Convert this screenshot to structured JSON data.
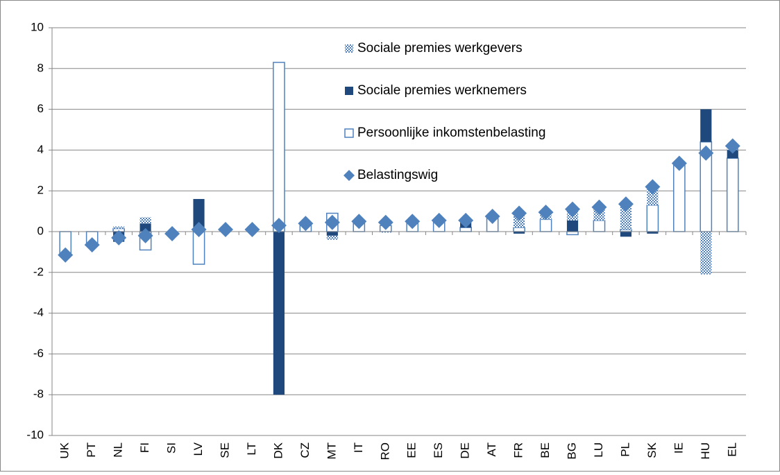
{
  "chart_data": {
    "type": "bar",
    "stacked": true,
    "categories": [
      "UK",
      "PT",
      "NL",
      "FI",
      "SI",
      "LV",
      "SE",
      "LT",
      "DK",
      "CZ",
      "MT",
      "IT",
      "RO",
      "EE",
      "ES",
      "DE",
      "AT",
      "FR",
      "BE",
      "BG",
      "LU",
      "PL",
      "SK",
      "IE",
      "HU",
      "EL"
    ],
    "series": [
      {
        "name": "Sociale premies werkgevers",
        "color": "#4f81bd",
        "style": "pattern",
        "values": [
          0,
          0,
          0.1,
          0.3,
          0,
          0,
          0,
          0,
          0,
          0,
          -0.2,
          0,
          -0.05,
          0,
          0,
          0,
          0,
          0.6,
          0.3,
          0.5,
          0.6,
          1.3,
          0.9,
          0,
          -2.1,
          0.2
        ]
      },
      {
        "name": "Sociale premies werknemers",
        "color": "#1f497d",
        "style": "solid",
        "values": [
          0,
          0,
          -0.5,
          0.4,
          0,
          1.6,
          0,
          0,
          -8.0,
          0,
          -0.2,
          0,
          0,
          0,
          0,
          0.3,
          0,
          -0.1,
          0,
          0.55,
          0,
          -0.25,
          -0.1,
          0,
          1.6,
          0.4
        ]
      },
      {
        "name": "Persoonlijke inkomstenbelasting",
        "color": "#4f81bd",
        "style": "outline",
        "values": [
          -1.1,
          -0.6,
          0.15,
          -0.9,
          0,
          -1.6,
          0,
          0,
          8.3,
          0.4,
          0.9,
          0.5,
          0.3,
          0.5,
          0.5,
          0.2,
          0.75,
          0.2,
          0.6,
          -0.15,
          0.55,
          0.1,
          1.3,
          3.3,
          4.4,
          3.6
        ]
      },
      {
        "name": "Belastingswig",
        "color": "#4f81bd",
        "style": "diamond",
        "values": [
          -1.15,
          -0.65,
          -0.3,
          -0.2,
          -0.1,
          0.1,
          0.1,
          0.1,
          0.3,
          0.4,
          0.45,
          0.5,
          0.45,
          0.5,
          0.55,
          0.55,
          0.75,
          0.9,
          0.95,
          1.1,
          1.2,
          1.35,
          2.2,
          3.35,
          3.85,
          4.2
        ]
      }
    ],
    "ylim": [
      -10,
      10
    ],
    "yticks": [
      -10,
      -8,
      -6,
      -4,
      -2,
      0,
      2,
      4,
      6,
      8,
      10
    ],
    "grid": true
  }
}
